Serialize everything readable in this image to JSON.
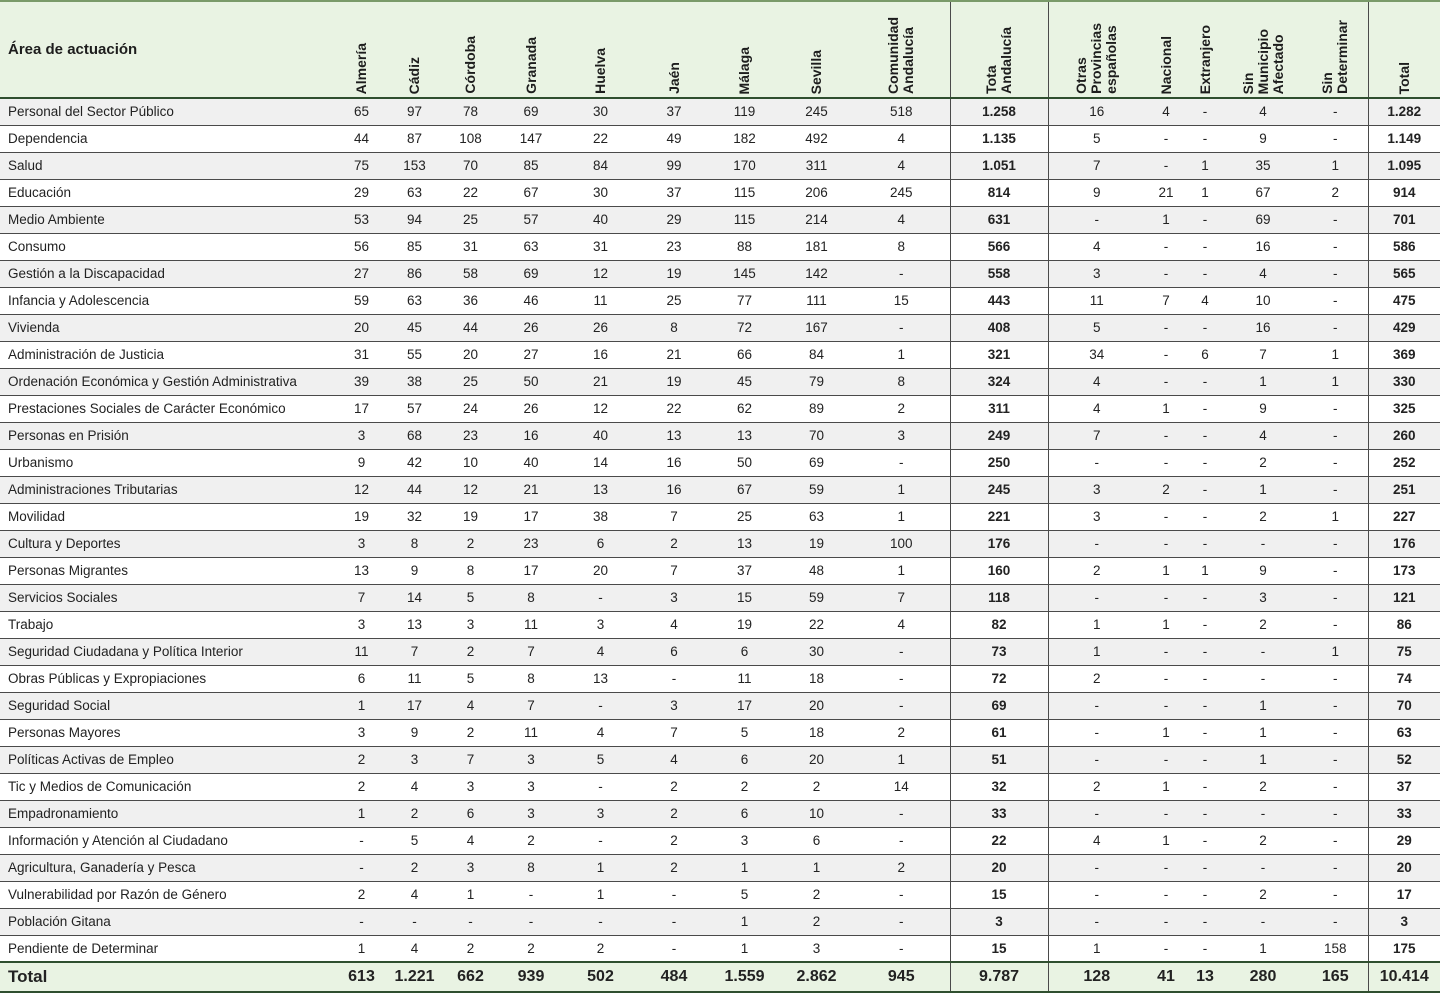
{
  "table": {
    "header_area": "Área de actuación",
    "columns": [
      "Almería",
      "Cádiz",
      "Córdoba",
      "Granada",
      "Huelva",
      "Jaén",
      "Málaga",
      "Sevilla",
      "Comunidad\nAndalucía",
      "Tota\nAndalucía",
      "Otras\nProvincias\nespañolas",
      "Nacional",
      "Extranjero",
      "Sin\nMunicipio\nAfectado",
      "Sin\nDeterminar",
      "Total"
    ],
    "rows": [
      {
        "area": "Personal del Sector Público",
        "values": [
          "65",
          "97",
          "78",
          "69",
          "30",
          "37",
          "119",
          "245",
          "518",
          "1.258",
          "16",
          "4",
          "-",
          "4",
          "-",
          "1.282"
        ]
      },
      {
        "area": "Dependencia",
        "values": [
          "44",
          "87",
          "108",
          "147",
          "22",
          "49",
          "182",
          "492",
          "4",
          "1.135",
          "5",
          "-",
          "-",
          "9",
          "-",
          "1.149"
        ]
      },
      {
        "area": "Salud",
        "values": [
          "75",
          "153",
          "70",
          "85",
          "84",
          "99",
          "170",
          "311",
          "4",
          "1.051",
          "7",
          "-",
          "1",
          "35",
          "1",
          "1.095"
        ]
      },
      {
        "area": "Educación",
        "values": [
          "29",
          "63",
          "22",
          "67",
          "30",
          "37",
          "115",
          "206",
          "245",
          "814",
          "9",
          "21",
          "1",
          "67",
          "2",
          "914"
        ]
      },
      {
        "area": "Medio Ambiente",
        "values": [
          "53",
          "94",
          "25",
          "57",
          "40",
          "29",
          "115",
          "214",
          "4",
          "631",
          "-",
          "1",
          "-",
          "69",
          "-",
          "701"
        ]
      },
      {
        "area": "Consumo",
        "values": [
          "56",
          "85",
          "31",
          "63",
          "31",
          "23",
          "88",
          "181",
          "8",
          "566",
          "4",
          "-",
          "-",
          "16",
          "-",
          "586"
        ]
      },
      {
        "area": "Gestión a la Discapacidad",
        "values": [
          "27",
          "86",
          "58",
          "69",
          "12",
          "19",
          "145",
          "142",
          "-",
          "558",
          "3",
          "-",
          "-",
          "4",
          "-",
          "565"
        ]
      },
      {
        "area": "Infancia y Adolescencia",
        "values": [
          "59",
          "63",
          "36",
          "46",
          "11",
          "25",
          "77",
          "111",
          "15",
          "443",
          "11",
          "7",
          "4",
          "10",
          "-",
          "475"
        ]
      },
      {
        "area": "Vivienda",
        "values": [
          "20",
          "45",
          "44",
          "26",
          "26",
          "8",
          "72",
          "167",
          "-",
          "408",
          "5",
          "-",
          "-",
          "16",
          "-",
          "429"
        ]
      },
      {
        "area": "Administración de Justicia",
        "values": [
          "31",
          "55",
          "20",
          "27",
          "16",
          "21",
          "66",
          "84",
          "1",
          "321",
          "34",
          "-",
          "6",
          "7",
          "1",
          "369"
        ]
      },
      {
        "area": "Ordenación Económica y Gestión Administrativa",
        "values": [
          "39",
          "38",
          "25",
          "50",
          "21",
          "19",
          "45",
          "79",
          "8",
          "324",
          "4",
          "-",
          "-",
          "1",
          "1",
          "330"
        ]
      },
      {
        "area": "Prestaciones Sociales de Carácter Económico",
        "values": [
          "17",
          "57",
          "24",
          "26",
          "12",
          "22",
          "62",
          "89",
          "2",
          "311",
          "4",
          "1",
          "-",
          "9",
          "-",
          "325"
        ]
      },
      {
        "area": "Personas en Prisión",
        "values": [
          "3",
          "68",
          "23",
          "16",
          "40",
          "13",
          "13",
          "70",
          "3",
          "249",
          "7",
          "-",
          "-",
          "4",
          "-",
          "260"
        ]
      },
      {
        "area": "Urbanismo",
        "values": [
          "9",
          "42",
          "10",
          "40",
          "14",
          "16",
          "50",
          "69",
          "-",
          "250",
          "-",
          "-",
          "-",
          "2",
          "-",
          "252"
        ]
      },
      {
        "area": "Administraciones Tributarias",
        "values": [
          "12",
          "44",
          "12",
          "21",
          "13",
          "16",
          "67",
          "59",
          "1",
          "245",
          "3",
          "2",
          "-",
          "1",
          "-",
          "251"
        ]
      },
      {
        "area": "Movilidad",
        "values": [
          "19",
          "32",
          "19",
          "17",
          "38",
          "7",
          "25",
          "63",
          "1",
          "221",
          "3",
          "-",
          "-",
          "2",
          "1",
          "227"
        ]
      },
      {
        "area": "Cultura y Deportes",
        "values": [
          "3",
          "8",
          "2",
          "23",
          "6",
          "2",
          "13",
          "19",
          "100",
          "176",
          "-",
          "-",
          "-",
          "-",
          "-",
          "176"
        ]
      },
      {
        "area": "Personas Migrantes",
        "values": [
          "13",
          "9",
          "8",
          "17",
          "20",
          "7",
          "37",
          "48",
          "1",
          "160",
          "2",
          "1",
          "1",
          "9",
          "-",
          "173"
        ]
      },
      {
        "area": "Servicios Sociales",
        "values": [
          "7",
          "14",
          "5",
          "8",
          "-",
          "3",
          "15",
          "59",
          "7",
          "118",
          "-",
          "-",
          "-",
          "3",
          "-",
          "121"
        ]
      },
      {
        "area": "Trabajo",
        "values": [
          "3",
          "13",
          "3",
          "11",
          "3",
          "4",
          "19",
          "22",
          "4",
          "82",
          "1",
          "1",
          "-",
          "2",
          "-",
          "86"
        ]
      },
      {
        "area": "Seguridad Ciudadana y Política Interior",
        "values": [
          "11",
          "7",
          "2",
          "7",
          "4",
          "6",
          "6",
          "30",
          "-",
          "73",
          "1",
          "-",
          "-",
          "-",
          "1",
          "75"
        ]
      },
      {
        "area": "Obras Públicas y Expropiaciones",
        "values": [
          "6",
          "11",
          "5",
          "8",
          "13",
          "-",
          "11",
          "18",
          "-",
          "72",
          "2",
          "-",
          "-",
          "-",
          "-",
          "74"
        ]
      },
      {
        "area": "Seguridad Social",
        "values": [
          "1",
          "17",
          "4",
          "7",
          "-",
          "3",
          "17",
          "20",
          "-",
          "69",
          "-",
          "-",
          "-",
          "1",
          "-",
          "70"
        ]
      },
      {
        "area": "Personas Mayores",
        "values": [
          "3",
          "9",
          "2",
          "11",
          "4",
          "7",
          "5",
          "18",
          "2",
          "61",
          "-",
          "1",
          "-",
          "1",
          "-",
          "63"
        ]
      },
      {
        "area": "Políticas Activas de Empleo",
        "values": [
          "2",
          "3",
          "7",
          "3",
          "5",
          "4",
          "6",
          "20",
          "1",
          "51",
          "-",
          "-",
          "-",
          "1",
          "-",
          "52"
        ]
      },
      {
        "area": "Tic y Medios de Comunicación",
        "values": [
          "2",
          "4",
          "3",
          "3",
          "-",
          "2",
          "2",
          "2",
          "14",
          "32",
          "2",
          "1",
          "-",
          "2",
          "-",
          "37"
        ]
      },
      {
        "area": "Empadronamiento",
        "values": [
          "1",
          "2",
          "6",
          "3",
          "3",
          "2",
          "6",
          "10",
          "-",
          "33",
          "-",
          "-",
          "-",
          "-",
          "-",
          "33"
        ]
      },
      {
        "area": "Información y Atención al Ciudadano",
        "values": [
          "-",
          "5",
          "4",
          "2",
          "-",
          "2",
          "3",
          "6",
          "-",
          "22",
          "4",
          "1",
          "-",
          "2",
          "-",
          "29"
        ]
      },
      {
        "area": "Agricultura, Ganadería y Pesca",
        "values": [
          "-",
          "2",
          "3",
          "8",
          "1",
          "2",
          "1",
          "1",
          "2",
          "20",
          "-",
          "-",
          "-",
          "-",
          "-",
          "20"
        ]
      },
      {
        "area": "Vulnerabilidad por Razón de Género",
        "values": [
          "2",
          "4",
          "1",
          "-",
          "1",
          "-",
          "5",
          "2",
          "-",
          "15",
          "-",
          "-",
          "-",
          "2",
          "-",
          "17"
        ]
      },
      {
        "area": "Población Gitana",
        "values": [
          "-",
          "-",
          "-",
          "-",
          "-",
          "-",
          "1",
          "2",
          "-",
          "3",
          "-",
          "-",
          "-",
          "-",
          "-",
          "3"
        ]
      },
      {
        "area": "Pendiente de Determinar",
        "values": [
          "1",
          "4",
          "2",
          "2",
          "2",
          "-",
          "1",
          "3",
          "-",
          "15",
          "1",
          "-",
          "-",
          "1",
          "158",
          "175"
        ]
      }
    ],
    "total": {
      "label": "Total",
      "values": [
        "613",
        "1.221",
        "662",
        "939",
        "502",
        "484",
        "1.559",
        "2.862",
        "945",
        "9.787",
        "128",
        "41",
        "13",
        "280",
        "165",
        "10.414"
      ]
    }
  }
}
